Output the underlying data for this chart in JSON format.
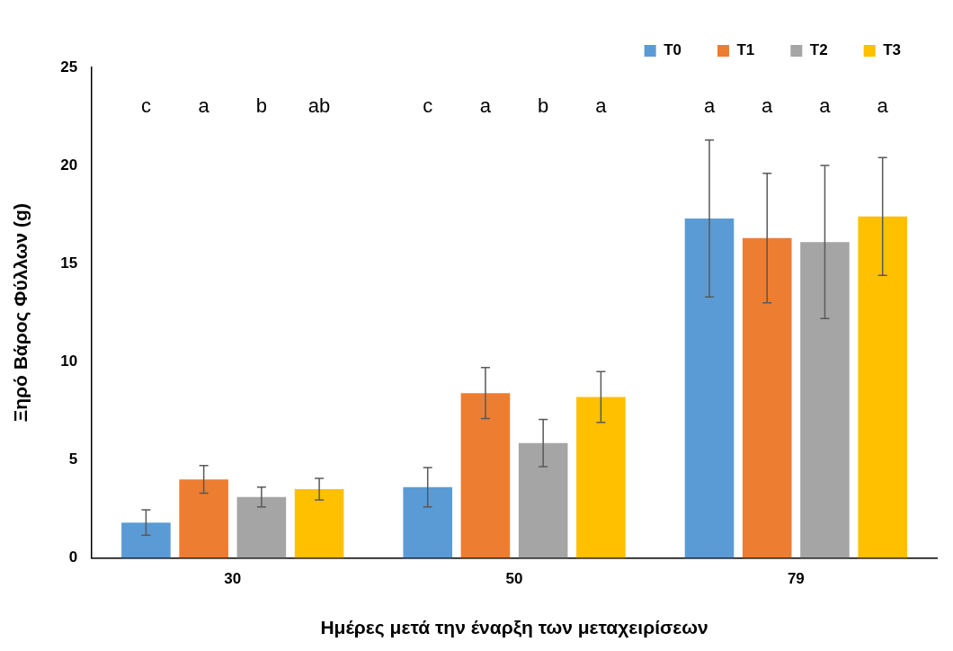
{
  "chart_data": {
    "type": "bar",
    "xlabel": "Ημέρες μετά την έναρξη των μεταχειρίσεων",
    "ylabel": "Ξηρό Βάρος Φύλλων (g)",
    "categories": [
      "30",
      "50",
      "79"
    ],
    "series": [
      {
        "name": "T0",
        "color": "#5b9bd5",
        "values": [
          1.8,
          3.6,
          17.3
        ],
        "errors": [
          0.65,
          1.0,
          4.0
        ]
      },
      {
        "name": "T1",
        "color": "#ed7d31",
        "values": [
          4.0,
          8.4,
          16.3
        ],
        "errors": [
          0.7,
          1.3,
          3.3
        ]
      },
      {
        "name": "T2",
        "color": "#a5a5a5",
        "values": [
          3.1,
          5.85,
          16.1
        ],
        "errors": [
          0.5,
          1.2,
          3.9
        ]
      },
      {
        "name": "T3",
        "color": "#ffc000",
        "values": [
          3.5,
          8.2,
          17.4
        ],
        "errors": [
          0.55,
          1.3,
          3.0
        ]
      }
    ],
    "annotations": [
      "c",
      "a",
      "b",
      "ab",
      "c",
      "a",
      "b",
      "a",
      "a",
      "a",
      "a",
      "a"
    ],
    "ylim": [
      0,
      25
    ],
    "yticks": [
      0,
      5,
      10,
      15,
      20,
      25
    ],
    "grid": false,
    "legend": "top right"
  }
}
